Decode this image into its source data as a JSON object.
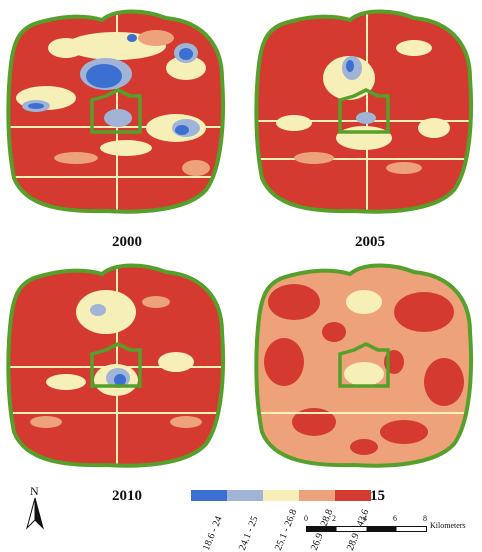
{
  "maps": [
    {
      "year": "2000"
    },
    {
      "year": "2005"
    },
    {
      "year": "2010"
    },
    {
      "year": "2015"
    }
  ],
  "legend": {
    "classes": [
      {
        "label": "18.6 - 24",
        "color": "#3b6fd1"
      },
      {
        "label": "24.1 - 25",
        "color": "#9fb4d6"
      },
      {
        "label": "25.1 - 26.8",
        "color": "#f6efb8"
      },
      {
        "label": "26.9 - 28.8",
        "color": "#eda27a"
      },
      {
        "label": "28.9 - 43.6",
        "color": "#d43a2f"
      }
    ]
  },
  "north_arrow": {
    "label": "N"
  },
  "scale_bar": {
    "ticks": [
      "0",
      "2",
      "4",
      "6",
      "8"
    ],
    "unit": "Kilometers"
  },
  "colors": {
    "boundary": "#55a02a",
    "hot": "#d43a2f",
    "warm": "#eda27a",
    "mild": "#f6efb8",
    "cool": "#9fb4d6",
    "cold": "#3b6fd1"
  }
}
